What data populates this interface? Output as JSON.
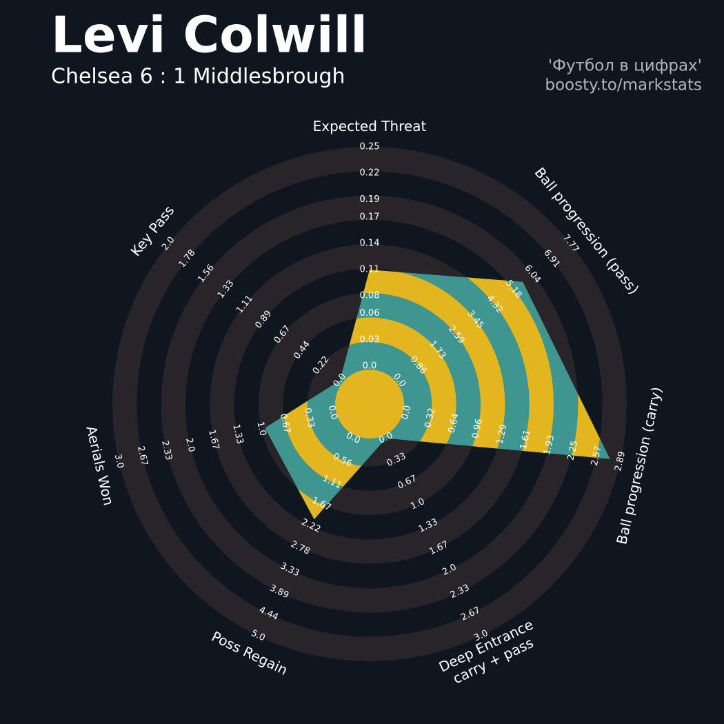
{
  "chart_data": {
    "type": "radar",
    "title": "Levi Colwill",
    "subtitle": "Chelsea 6 : 1 Middlesbrough",
    "credits": [
      "'Футбол в цифрах'",
      "boosty.to/markstats"
    ],
    "categories": [
      [
        "Expected Threat"
      ],
      [
        "Ball progression (pass)"
      ],
      [
        "Ball progression (carry)"
      ],
      [
        "Deep Entrance",
        "carry + pass"
      ],
      [
        "Poss Regain"
      ],
      [
        "Aerials Won"
      ],
      [
        "Key Pass"
      ]
    ],
    "ranges": [
      [
        0,
        0.25
      ],
      [
        0,
        7.77
      ],
      [
        0,
        2.89
      ],
      [
        0,
        3
      ],
      [
        0,
        5
      ],
      [
        0,
        3
      ],
      [
        0,
        2
      ]
    ],
    "ticks": [
      [
        {
          "value": 0,
          "label": "0.0"
        },
        0.03,
        0.06,
        0.08,
        0.11,
        0.14,
        0.17,
        0.19,
        0.22,
        0.25
      ],
      [
        {
          "value": 0,
          "label": "0.0"
        },
        0.86,
        1.73,
        2.59,
        3.45,
        4.32,
        5.18,
        6.04,
        6.91,
        7.77
      ],
      [
        {
          "value": 0,
          "label": "0.0"
        },
        0.32,
        0.64,
        0.96,
        1.29,
        1.61,
        1.93,
        2.25,
        2.57,
        2.89
      ],
      [
        {
          "value": 0,
          "label": "0.0"
        },
        0.33,
        0.67,
        {
          "value": 1,
          "label": "1.0"
        },
        1.33,
        1.67,
        {
          "value": 2,
          "label": "2.0"
        },
        2.33,
        2.67,
        {
          "value": 3,
          "label": "3.0"
        }
      ],
      [
        {
          "value": 0,
          "label": "0.0"
        },
        0.56,
        1.11,
        1.67,
        2.22,
        2.78,
        3.33,
        3.89,
        4.44,
        {
          "value": 5,
          "label": "5.0"
        }
      ],
      [
        {
          "value": 0,
          "label": "0.0"
        },
        0.33,
        0.67,
        {
          "value": 1,
          "label": "1.0"
        },
        1.33,
        1.67,
        {
          "value": 2,
          "label": "2.0"
        },
        2.33,
        2.67,
        {
          "value": 3,
          "label": "3.0"
        }
      ],
      [
        {
          "value": 0,
          "label": "0.0"
        },
        0.22,
        0.44,
        0.67,
        0.89,
        1.11,
        1.33,
        1.56,
        1.78,
        {
          "value": 2,
          "label": "2.0"
        }
      ]
    ],
    "ring_color": "#28242a",
    "series": [
      {
        "color": "#3f9690",
        "band_color": "#e3b51e",
        "values": [
          0.11,
          5.6,
          2.75,
          0,
          2.05,
          0.95,
          0
        ]
      }
    ]
  }
}
